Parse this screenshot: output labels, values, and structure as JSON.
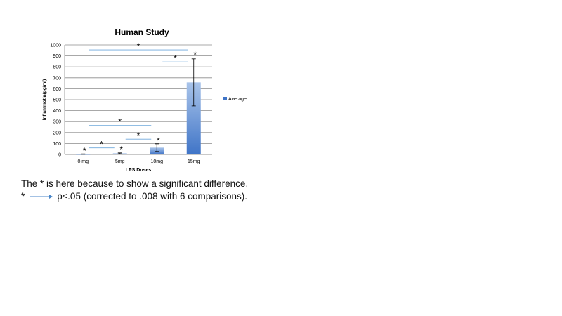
{
  "chart_data": {
    "type": "bar",
    "title": "Human Study",
    "xlabel": "LPS Doses",
    "ylabel": "Inflammotin(pg/ml)",
    "categories": [
      "0 mg",
      "5mg",
      "10mg",
      "15mg"
    ],
    "series": [
      {
        "name": "Average",
        "values": [
          3,
          10,
          62,
          658
        ],
        "errors": [
          2,
          4,
          35,
          215
        ]
      }
    ],
    "ylim": [
      0,
      1000
    ],
    "yticks": [
      "0",
      "100",
      "200",
      "300",
      "400",
      "500",
      "600",
      "700",
      "800",
      "900",
      "1000"
    ],
    "grid": true,
    "legend": "right",
    "colors": {
      "bar_top": "#a9c4ea",
      "bar_bottom": "#3f74c7",
      "bracket": "#6fa8dc"
    },
    "significance": [
      {
        "from": "0 mg",
        "to": "5mg",
        "y": 60,
        "label": "*"
      },
      {
        "from": "5mg",
        "to": "10mg",
        "y": 140,
        "label": "*"
      },
      {
        "from": "0 mg",
        "to": "10mg",
        "y": 265,
        "label": "*"
      },
      {
        "from": "10mg",
        "to": "15mg",
        "y": 845,
        "label": "*"
      },
      {
        "from": "0 mg",
        "to": "15mg",
        "y": 955,
        "label": "*"
      }
    ],
    "bar_stars": [
      {
        "category": "0 mg",
        "y": 25,
        "label": "*"
      },
      {
        "category": "5mg",
        "y": 40,
        "label": "*"
      },
      {
        "category": "10mg",
        "y": 120,
        "label": "*"
      },
      {
        "category": "15mg",
        "y": 905,
        "label": "*"
      }
    ]
  },
  "notes": {
    "line1": "The * is here because to show a significant difference.",
    "line2_star": "*",
    "line2_text": "p≤.05 (corrected to .008 with 6 comparisons)."
  }
}
